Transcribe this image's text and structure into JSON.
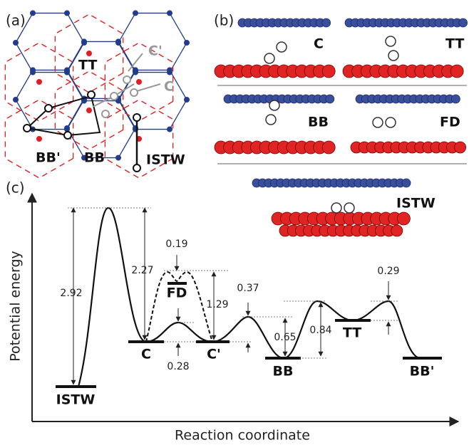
{
  "panel_a": {
    "label": "(a)",
    "sites": [
      "TT",
      "C'",
      "C",
      "BB'",
      "BB",
      "ISTW"
    ]
  },
  "panel_b": {
    "label": "(b)",
    "configs": [
      "C",
      "TT",
      "BB",
      "FD",
      "ISTW"
    ]
  },
  "panel_c": {
    "label": "(c)",
    "y_label": "Potential energy",
    "x_label": "Reaction coordinate",
    "states": [
      "ISTW",
      "C",
      "FD",
      "C'",
      "BB",
      "TT",
      "BB'"
    ],
    "energies": [
      2.92,
      2.27,
      0.19,
      0.28,
      1.29,
      0.37,
      0.65,
      0.84,
      0.29
    ]
  }
}
